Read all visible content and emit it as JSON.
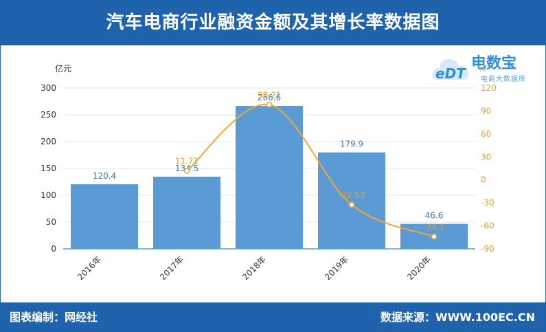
{
  "title": "汽车电商行业融资金额及其增长率数据图",
  "footer": {
    "left": "图表编制：网经社",
    "right": "数据来源：WWW.100EC.CN"
  },
  "logo": {
    "mark": "eDT",
    "name": "电数宝",
    "sub": "电商大数据库"
  },
  "colors": {
    "header": "#1f63ad",
    "bar": "#5b9bd5",
    "line": "#f0a830",
    "axis_right": "#e8a020"
  },
  "chart_data": {
    "type": "bar",
    "categories": [
      "2016年",
      "2017年",
      "2018年",
      "2019年",
      "2020年"
    ],
    "series": [
      {
        "type": "bar",
        "axis": "left",
        "values": [
          120.4,
          134.5,
          266.6,
          179.9,
          46.6
        ],
        "labels": [
          "120.4",
          "134.5",
          "266.6",
          "179.9",
          "46.6"
        ]
      },
      {
        "type": "line",
        "axis": "right",
        "values": [
          null,
          11.71,
          98.21,
          -32.53,
          -74.1
        ],
        "labels": [
          "",
          "11.71",
          "98.21",
          "-32.53",
          "-74.1"
        ]
      }
    ],
    "y_left": {
      "unit": "亿元",
      "min": 0,
      "max": 300,
      "ticks": [
        0,
        50,
        100,
        150,
        200,
        250,
        300
      ]
    },
    "y_right": {
      "unit": "%",
      "min": -90,
      "max": 120,
      "ticks": [
        -90,
        -60,
        -30,
        0,
        30,
        60,
        90,
        120
      ]
    },
    "grid": true,
    "legend": "none"
  }
}
